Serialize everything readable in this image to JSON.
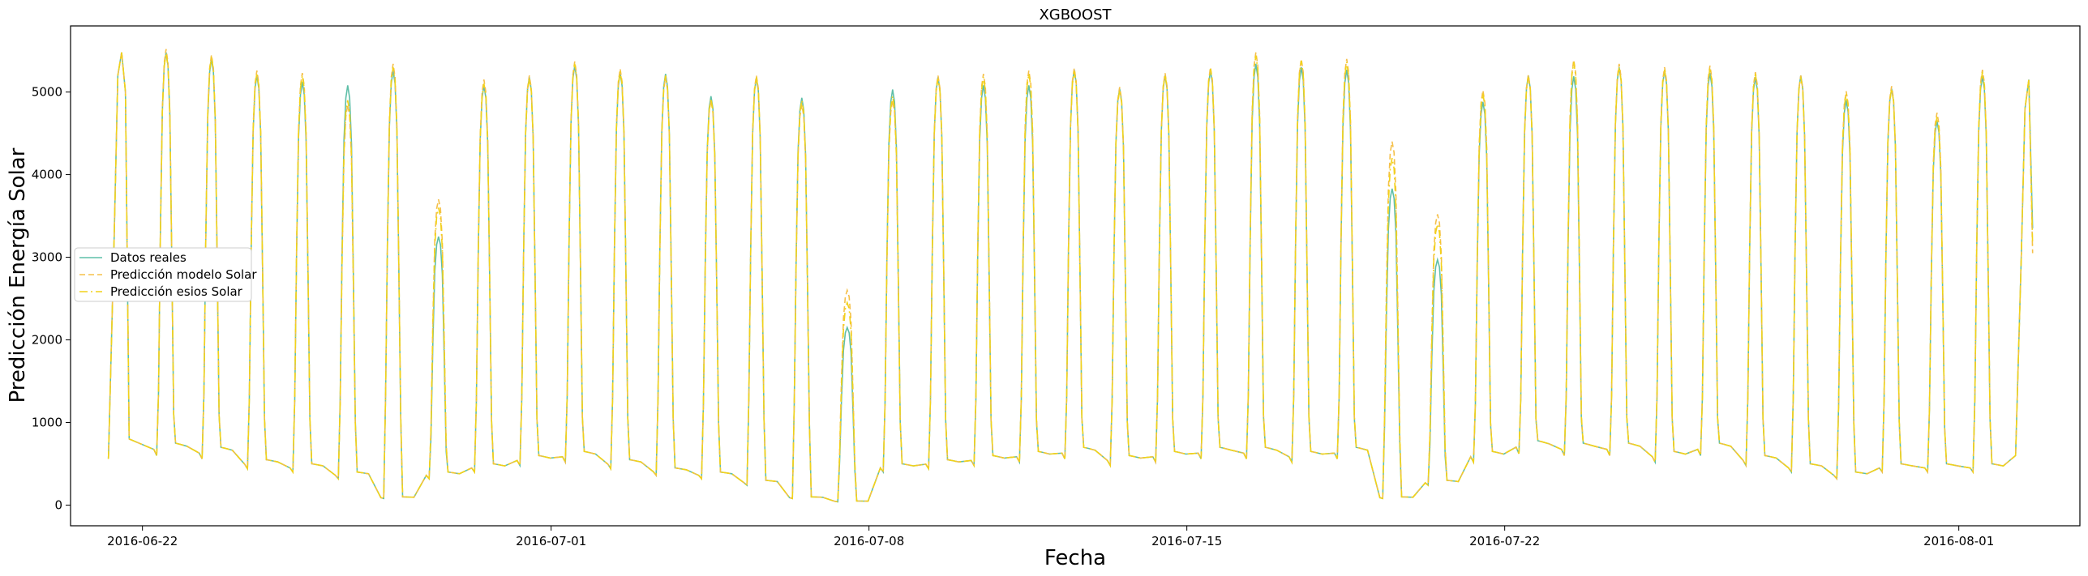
{
  "chart_data": {
    "type": "line",
    "title": "XGBOOST",
    "xlabel": "Fecha",
    "ylabel": "Predicción Energía Solar",
    "x_range": [
      "2016-06-20T10:00",
      "2016-08-03T16:00"
    ],
    "ylim": [
      -250,
      5800
    ],
    "x_ticks": [
      {
        "date": "2016-06-22",
        "label": "2016-06-22"
      },
      {
        "date": "2016-07-01",
        "label": "2016-07-01"
      },
      {
        "date": "2016-07-08",
        "label": "2016-07-08"
      },
      {
        "date": "2016-07-15",
        "label": "2016-07-15"
      },
      {
        "date": "2016-07-22",
        "label": "2016-07-22"
      },
      {
        "date": "2016-08-01",
        "label": "2016-08-01"
      }
    ],
    "y_ticks": [
      0,
      1000,
      2000,
      3000,
      4000,
      5000
    ],
    "grid": false,
    "legend_position": "center-left",
    "series": [
      {
        "name": "Datos reales",
        "color": "#5fbfa8",
        "style": "solid"
      },
      {
        "name": "Predicción modelo Solar",
        "color": "#f5c04a",
        "style": "dashed"
      },
      {
        "name": "Predicción esios Solar",
        "color": "#f2d21a",
        "style": "dashdot"
      }
    ],
    "daily": {
      "start_date": "2016-06-22",
      "peaks_real": [
        5480,
        5400,
        5200,
        5120,
        5080,
        5260,
        3250,
        5080,
        5180,
        5320,
        5230,
        5220,
        4950,
        5170,
        4930,
        2150,
        5030,
        5180,
        5080,
        5080,
        5270,
        5040,
        5200,
        5260,
        5340,
        5300,
        5270,
        3830,
        2970,
        4880,
        5200,
        5190,
        5300,
        5260,
        5230,
        5180,
        5200,
        4900,
        5040,
        4650,
        5190
      ],
      "peaks_model": [
        5520,
        5450,
        5260,
        5230,
        4850,
        5340,
        3700,
        5150,
        5200,
        5370,
        5280,
        5180,
        4900,
        5200,
        4850,
        2600,
        4900,
        5200,
        5220,
        5260,
        5290,
        5060,
        5230,
        5300,
        5480,
        5400,
        5400,
        4400,
        3520,
        5020,
        5210,
        5390,
        5340,
        5300,
        5320,
        5240,
        5200,
        5010,
        5070,
        4750,
        5270
      ],
      "peaks_esios": [
        5470,
        5430,
        5230,
        5200,
        4900,
        5300,
        3600,
        5100,
        5160,
        5340,
        5250,
        5200,
        4920,
        5180,
        4900,
        2450,
        4950,
        5160,
        5180,
        5220,
        5250,
        5020,
        5210,
        5280,
        5440,
        5380,
        5360,
        4200,
        3400,
        4980,
        5180,
        5360,
        5300,
        5270,
        5290,
        5220,
        5180,
        4980,
        5040,
        4700,
        5240
      ],
      "nights": [
        750,
        700,
        550,
        500,
        400,
        100,
        400,
        500,
        600,
        650,
        550,
        450,
        400,
        300,
        100,
        50,
        500,
        550,
        600,
        650,
        700,
        600,
        650,
        700,
        700,
        650,
        700,
        100,
        300,
        650,
        780,
        750,
        750,
        650,
        750,
        600,
        500,
        400,
        500,
        500,
        500
      ]
    },
    "end_values": {
      "real": 3350,
      "model": 3050,
      "esios": 3150
    }
  }
}
